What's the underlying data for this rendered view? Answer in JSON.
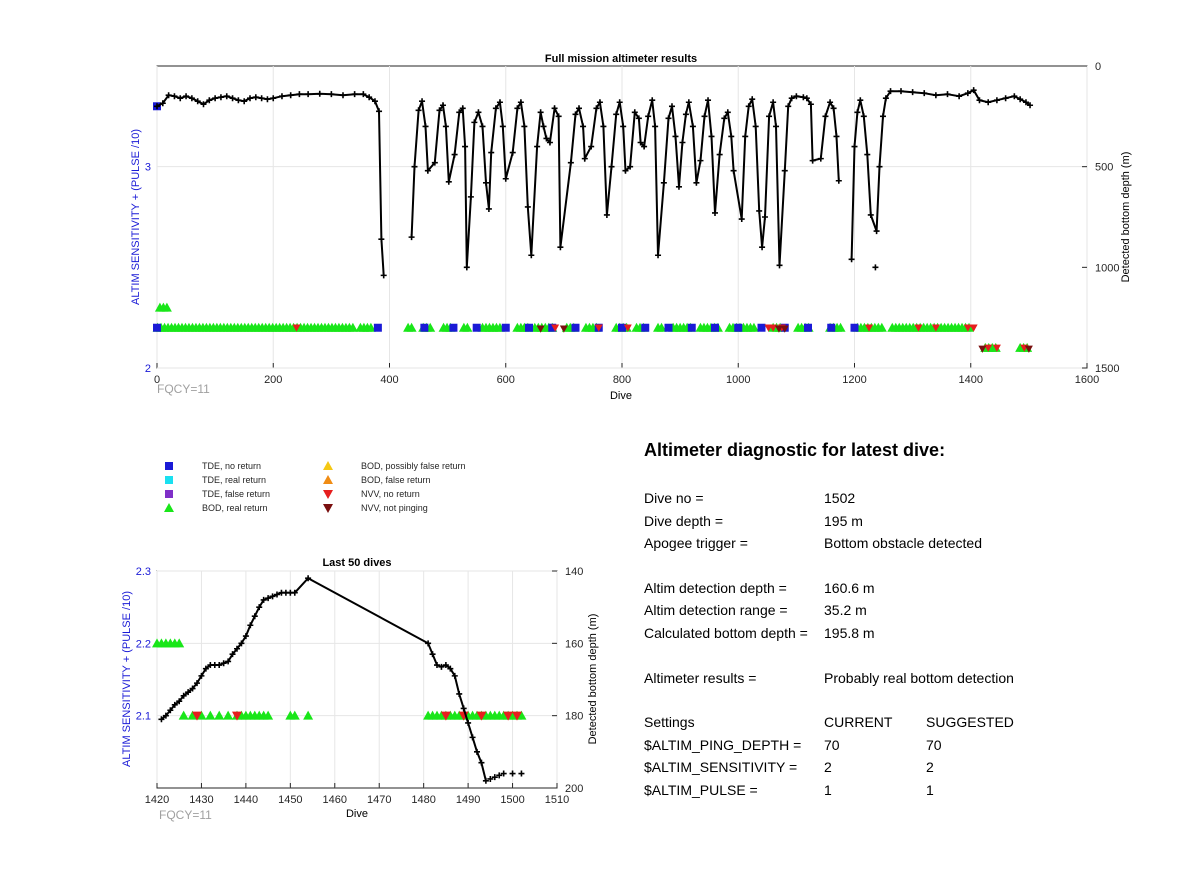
{
  "chart_data": [
    {
      "type": "scatter",
      "title": "Full mission altimeter results",
      "xlabel": "Dive",
      "ylabel": "ALTIM SENSITIVITY + (PULSE /10)",
      "y2label": "Detected bottom depth (m)",
      "xlim": [
        0,
        1600
      ],
      "ylim": [
        2,
        3.5
      ],
      "y2lim": [
        1500,
        0
      ],
      "xticks": [
        "0",
        "200",
        "400",
        "600",
        "800",
        "1000",
        "1200",
        "1400",
        "1600"
      ],
      "yticks": [
        "2",
        "3"
      ],
      "y2ticks": [
        "0",
        "500",
        "1000",
        "1500"
      ],
      "footer": "FQCY=11",
      "grid": true,
      "bottom_depth_series": [
        [
          0,
          200
        ],
        [
          10,
          185
        ],
        [
          20,
          145
        ],
        [
          30,
          150
        ],
        [
          40,
          160
        ],
        [
          50,
          150
        ],
        [
          60,
          160
        ],
        [
          70,
          175
        ],
        [
          80,
          190
        ],
        [
          90,
          170
        ],
        [
          100,
          160
        ],
        [
          110,
          155
        ],
        [
          120,
          150
        ],
        [
          130,
          160
        ],
        [
          140,
          170
        ],
        [
          150,
          175
        ],
        [
          160,
          160
        ],
        [
          170,
          155
        ],
        [
          180,
          160
        ],
        [
          190,
          165
        ],
        [
          200,
          160
        ],
        [
          215,
          150
        ],
        [
          230,
          145
        ],
        [
          245,
          140
        ],
        [
          260,
          140
        ],
        [
          280,
          138
        ],
        [
          300,
          140
        ],
        [
          320,
          145
        ],
        [
          340,
          140
        ],
        [
          355,
          140
        ],
        [
          365,
          155
        ],
        [
          375,
          175
        ],
        [
          382,
          225
        ],
        [
          386,
          860
        ],
        [
          390,
          1040
        ],
        [
          438,
          850
        ],
        [
          443,
          500
        ],
        [
          450,
          220
        ],
        [
          456,
          175
        ],
        [
          462,
          300
        ],
        [
          466,
          520
        ],
        [
          478,
          480
        ],
        [
          486,
          220
        ],
        [
          492,
          195
        ],
        [
          497,
          300
        ],
        [
          502,
          575
        ],
        [
          512,
          440
        ],
        [
          520,
          230
        ],
        [
          526,
          210
        ],
        [
          530,
          400
        ],
        [
          533,
          1000
        ],
        [
          540,
          650
        ],
        [
          546,
          280
        ],
        [
          553,
          230
        ],
        [
          560,
          300
        ],
        [
          566,
          580
        ],
        [
          571,
          710
        ],
        [
          575,
          430
        ],
        [
          583,
          210
        ],
        [
          590,
          180
        ],
        [
          595,
          300
        ],
        [
          600,
          560
        ],
        [
          612,
          430
        ],
        [
          620,
          210
        ],
        [
          626,
          180
        ],
        [
          632,
          300
        ],
        [
          638,
          700
        ],
        [
          644,
          940
        ],
        [
          654,
          400
        ],
        [
          660,
          230
        ],
        [
          665,
          300
        ],
        [
          670,
          360
        ],
        [
          676,
          380
        ],
        [
          684,
          210
        ],
        [
          691,
          250
        ],
        [
          694,
          900
        ],
        [
          712,
          480
        ],
        [
          720,
          240
        ],
        [
          726,
          210
        ],
        [
          733,
          300
        ],
        [
          736,
          460
        ],
        [
          747,
          400
        ],
        [
          756,
          210
        ],
        [
          762,
          180
        ],
        [
          768,
          300
        ],
        [
          774,
          740
        ],
        [
          782,
          500
        ],
        [
          790,
          240
        ],
        [
          796,
          180
        ],
        [
          802,
          300
        ],
        [
          806,
          520
        ],
        [
          814,
          500
        ],
        [
          822,
          230
        ],
        [
          829,
          260
        ],
        [
          832,
          380
        ],
        [
          838,
          400
        ],
        [
          845,
          250
        ],
        [
          852,
          170
        ],
        [
          857,
          300
        ],
        [
          862,
          940
        ],
        [
          872,
          580
        ],
        [
          880,
          260
        ],
        [
          886,
          200
        ],
        [
          892,
          350
        ],
        [
          898,
          600
        ],
        [
          904,
          380
        ],
        [
          910,
          240
        ],
        [
          915,
          180
        ],
        [
          922,
          300
        ],
        [
          928,
          580
        ],
        [
          935,
          470
        ],
        [
          942,
          250
        ],
        [
          948,
          170
        ],
        [
          954,
          350
        ],
        [
          960,
          730
        ],
        [
          968,
          440
        ],
        [
          976,
          260
        ],
        [
          982,
          230
        ],
        [
          988,
          350
        ],
        [
          992,
          520
        ],
        [
          1006,
          760
        ],
        [
          1012,
          350
        ],
        [
          1018,
          200
        ],
        [
          1024,
          165
        ],
        [
          1030,
          300
        ],
        [
          1036,
          720
        ],
        [
          1041,
          900
        ],
        [
          1046,
          750
        ],
        [
          1053,
          250
        ],
        [
          1060,
          180
        ],
        [
          1065,
          300
        ],
        [
          1071,
          990
        ],
        [
          1080,
          520
        ],
        [
          1086,
          200
        ],
        [
          1092,
          160
        ],
        [
          1100,
          150
        ],
        [
          1112,
          155
        ],
        [
          1118,
          160
        ],
        [
          1125,
          190
        ],
        [
          1128,
          470
        ],
        [
          1142,
          460
        ],
        [
          1150,
          250
        ],
        [
          1158,
          180
        ],
        [
          1164,
          210
        ],
        [
          1169,
          350
        ],
        [
          1173,
          570
        ],
        [
          1195,
          960
        ],
        [
          1200,
          400
        ],
        [
          1205,
          230
        ],
        [
          1210,
          170
        ],
        [
          1216,
          250
        ],
        [
          1222,
          440
        ],
        [
          1228,
          740
        ],
        [
          1238,
          820
        ],
        [
          1243,
          500
        ],
        [
          1249,
          250
        ],
        [
          1254,
          160
        ],
        [
          1262,
          125
        ],
        [
          1280,
          125
        ],
        [
          1300,
          130
        ],
        [
          1320,
          135
        ],
        [
          1340,
          145
        ],
        [
          1360,
          140
        ],
        [
          1380,
          150
        ],
        [
          1395,
          135
        ],
        [
          1405,
          120
        ],
        [
          1415,
          170
        ],
        [
          1430,
          180
        ],
        [
          1445,
          170
        ],
        [
          1460,
          160
        ],
        [
          1475,
          150
        ],
        [
          1485,
          165
        ],
        [
          1495,
          180
        ],
        [
          1502,
          195
        ]
      ],
      "bod_real_ranges": [
        [
          5,
          20
        ],
        [
          1,
          340
        ],
        [
          350,
          372
        ],
        [
          432,
          442
        ],
        [
          458,
          470
        ],
        [
          493,
          508
        ],
        [
          528,
          536
        ],
        [
          560,
          590
        ],
        [
          620,
          640
        ],
        [
          650,
          680
        ],
        [
          705,
          718
        ],
        [
          738,
          760
        ],
        [
          790,
          808
        ],
        [
          825,
          842
        ],
        [
          862,
          872
        ],
        [
          888,
          918
        ],
        [
          935,
          968
        ],
        [
          985,
          1030
        ],
        [
          1060,
          1075
        ],
        [
          1103,
          1125
        ],
        [
          1158,
          1180
        ],
        [
          1205,
          1250
        ],
        [
          1265,
          1400
        ],
        [
          1425,
          1445
        ],
        [
          1485,
          1500
        ]
      ],
      "tde_no_return_dives": [
        0,
        380,
        460,
        510,
        550,
        600,
        640,
        680,
        720,
        760,
        800,
        840,
        880,
        920,
        960,
        1000,
        1040,
        1080,
        1120,
        1160,
        1200
      ],
      "nvv_no_return_dives": [
        240,
        685,
        760,
        810,
        1052,
        1060,
        1075,
        1225,
        1310,
        1340,
        1395,
        1405,
        1430,
        1445,
        1492
      ],
      "nvv_not_pinging_dives": [
        660,
        700,
        1070,
        1080,
        1420,
        1500
      ]
    },
    {
      "type": "scatter",
      "title": "Last 50 dives",
      "xlabel": "Dive",
      "ylabel": "ALTIM SENSITIVITY + (PULSE /10)",
      "y2label": "Detected bottom depth (m)",
      "xlim": [
        1420,
        1510
      ],
      "ylim": [
        2.0,
        2.3
      ],
      "y2lim": [
        200,
        140
      ],
      "xticks": [
        "1420",
        "1430",
        "1440",
        "1450",
        "1460",
        "1470",
        "1480",
        "1490",
        "1500",
        "1510"
      ],
      "yticks": [
        "2.1",
        "2.2",
        "2.3"
      ],
      "y2ticks": [
        "140",
        "160",
        "180",
        "200"
      ],
      "footer": "FQCY=11",
      "grid": true,
      "bottom_depth_series": [
        [
          1421,
          181
        ],
        [
          1422,
          180
        ],
        [
          1423,
          178.5
        ],
        [
          1424,
          177
        ],
        [
          1425,
          176
        ],
        [
          1426,
          174.5
        ],
        [
          1427,
          173.5
        ],
        [
          1428,
          172.5
        ],
        [
          1429,
          171
        ],
        [
          1430,
          169
        ],
        [
          1431,
          167
        ],
        [
          1432,
          166
        ],
        [
          1433,
          166
        ],
        [
          1434,
          166
        ],
        [
          1435,
          165.5
        ],
        [
          1436,
          165
        ],
        [
          1437,
          163
        ],
        [
          1438,
          161.5
        ],
        [
          1439,
          160
        ],
        [
          1440,
          158
        ],
        [
          1441,
          155
        ],
        [
          1442,
          152.5
        ],
        [
          1443,
          150
        ],
        [
          1444,
          148
        ],
        [
          1445,
          147.5
        ],
        [
          1446,
          147
        ],
        [
          1447,
          146.5
        ],
        [
          1448,
          146
        ],
        [
          1449,
          146
        ],
        [
          1450,
          146
        ],
        [
          1451,
          146
        ],
        [
          1454,
          142
        ],
        [
          1481,
          160
        ],
        [
          1482,
          163
        ],
        [
          1483,
          166
        ],
        [
          1484,
          166.5
        ],
        [
          1485,
          166
        ],
        [
          1486,
          167
        ],
        [
          1487,
          169
        ],
        [
          1488,
          174
        ],
        [
          1489,
          178
        ],
        [
          1490,
          182
        ],
        [
          1491,
          186
        ],
        [
          1492,
          190
        ],
        [
          1493,
          193
        ],
        [
          1494,
          198
        ],
        [
          1495,
          197.5
        ],
        [
          1496,
          197
        ],
        [
          1497,
          196.5
        ],
        [
          1498,
          196
        ],
        [
          1500,
          196
        ],
        [
          1502,
          196
        ]
      ],
      "bod_real_210": [
        1426,
        1428,
        1430,
        1432,
        1434,
        1436,
        1438,
        1439,
        1440,
        1441,
        1442,
        1443,
        1444,
        1445,
        1450,
        1451,
        1454,
        1481,
        1482,
        1483,
        1484,
        1485,
        1486,
        1487,
        1488,
        1489,
        1490,
        1491,
        1492,
        1493,
        1494,
        1495,
        1496,
        1497,
        1498,
        1499,
        1500,
        1501,
        1502
      ],
      "bod_real_220": [
        1420,
        1421,
        1422,
        1423,
        1424,
        1425
      ],
      "nvv_no_return_dives": [
        1429,
        1438,
        1485,
        1489,
        1493,
        1499,
        1501
      ]
    }
  ],
  "legend": {
    "items": [
      {
        "label": "TDE, no return",
        "marker": "square",
        "color": "#1a1ad6"
      },
      {
        "label": "TDE, real return",
        "marker": "square",
        "color": "#19e0f0"
      },
      {
        "label": "TDE, false return",
        "marker": "square",
        "color": "#7f2fc8"
      },
      {
        "label": "BOD, real return",
        "marker": "triangle-up",
        "color": "#19e619"
      },
      {
        "label": "BOD, possibly false return",
        "marker": "triangle-up",
        "color": "#f5c814"
      },
      {
        "label": "BOD, false return",
        "marker": "triangle-up",
        "color": "#f08c14"
      },
      {
        "label": "NVV, no return",
        "marker": "triangle-down",
        "color": "#e61e1e"
      },
      {
        "label": "NVV, not pinging",
        "marker": "triangle-down",
        "color": "#7a0f0f"
      }
    ]
  },
  "diagnostic": {
    "title": "Altimeter diagnostic for latest dive:",
    "dive_no_label": "Dive no =",
    "dive_no": "1502",
    "dive_depth_label": "Dive depth =",
    "dive_depth": "195 m",
    "apogee_label": "Apogee trigger =",
    "apogee": "Bottom obstacle detected",
    "detect_depth_label": "Altim detection depth =",
    "detect_depth": "160.6 m",
    "detect_range_label": "Altim detection range =",
    "detect_range": "35.2 m",
    "calc_depth_label": "Calculated bottom depth =",
    "calc_depth": "195.8 m",
    "results_label": "Altimeter results =",
    "results": "Probably real bottom detection",
    "settings_label": "Settings",
    "current_label": "CURRENT",
    "suggested_label": "SUGGESTED",
    "settings": [
      {
        "name": "$ALTIM_PING_DEPTH =",
        "current": "70",
        "suggested": "70"
      },
      {
        "name": "$ALTIM_SENSITIVITY =",
        "current": "2",
        "suggested": "2"
      },
      {
        "name": "$ALTIM_PULSE =",
        "current": "1",
        "suggested": "1"
      }
    ]
  }
}
